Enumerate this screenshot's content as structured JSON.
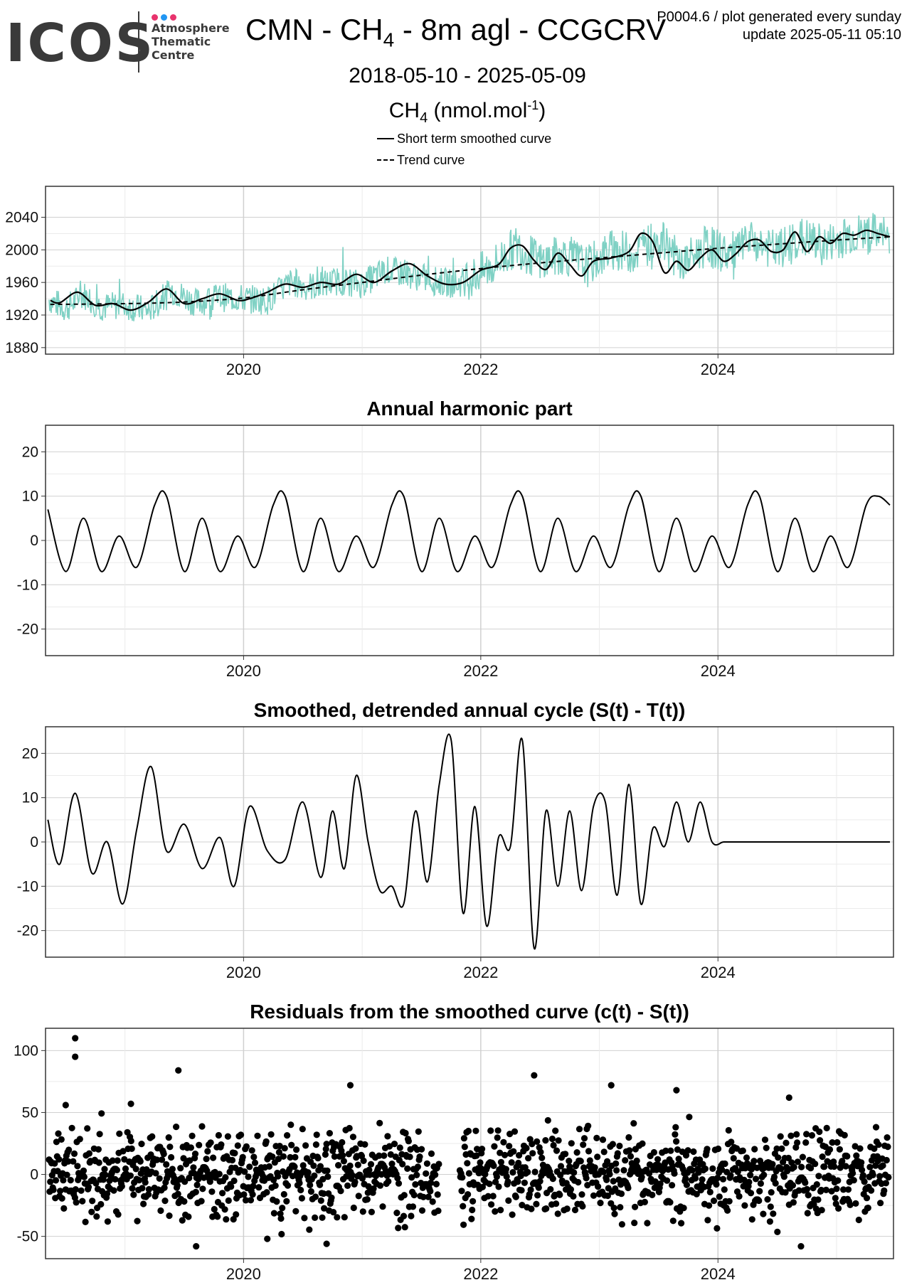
{
  "header": {
    "logo_text": "ICOS",
    "logo_sub": [
      "Atmosphere",
      "Thematic",
      "Centre"
    ],
    "logo_dot_colors": [
      "#e8336d",
      "#2196f3",
      "#e8336d"
    ],
    "title": "CMN - CH4 - 8m agl - CCGCRV",
    "meta_line1": "P0004.6 / plot generated every sunday",
    "meta_line2": "update  2025-05-11 05:10",
    "date_range": "2018-05-10 - 2025-05-09",
    "unit": "CH4 (nmol.mol-1)"
  },
  "legend": {
    "items": [
      {
        "label": "Short term smoothed curve",
        "style": "solid"
      },
      {
        "label": "Trend curve",
        "style": "dashed"
      }
    ]
  },
  "colors": {
    "raw_series": "#7fd1c4",
    "line": "#000000",
    "grid_major": "#d0d0d0",
    "grid_minor": "#ebebeb",
    "frame": "#333333",
    "logo_text": "#3a3a3a"
  },
  "chart_data": [
    {
      "type": "line",
      "title": "",
      "xlim": [
        2018.33,
        2025.48
      ],
      "ylim": [
        1872,
        2078
      ],
      "x_ticks": [
        2020,
        2022,
        2024
      ],
      "y_ticks": [
        1880,
        1920,
        1960,
        2000,
        2040
      ],
      "series": [
        {
          "name": "",
          "kind": "raw",
          "note_estimated": true,
          "x": [
            2018.35,
            2018.5,
            2018.65,
            2018.8,
            2019.0,
            2019.2,
            2019.4,
            2019.6,
            2019.8,
            2020.0,
            2020.2,
            2020.4,
            2020.6,
            2020.8,
            2021.0,
            2021.2,
            2021.4,
            2021.6,
            2021.8,
            2021.95,
            2022.1,
            2022.3,
            2022.5,
            2022.7,
            2022.9,
            2023.1,
            2023.3,
            2023.5,
            2023.7,
            2023.9,
            2024.1,
            2024.3,
            2024.5,
            2024.7,
            2024.9,
            2025.1,
            2025.3,
            2025.45
          ],
          "y": [
            1940,
            1928,
            1945,
            1930,
            1932,
            1925,
            1950,
            1935,
            1942,
            1940,
            1938,
            1960,
            1955,
            1962,
            1958,
            1975,
            1970,
            1962,
            1958,
            1968,
            1980,
            2005,
            1985,
            1995,
            1980,
            2000,
            1996,
            2015,
            1982,
            2005,
            1995,
            2010,
            1998,
            2015,
            2005,
            2018,
            2020,
            2015
          ]
        },
        {
          "name": "Short term smoothed curve",
          "kind": "smooth",
          "x": [
            2018.37,
            2018.45,
            2018.6,
            2018.75,
            2018.9,
            2019.05,
            2019.2,
            2019.35,
            2019.5,
            2019.65,
            2019.8,
            2019.95,
            2020.05,
            2020.2,
            2020.35,
            2020.5,
            2020.65,
            2020.8,
            2020.95,
            2021.1,
            2021.25,
            2021.4,
            2021.55,
            2021.7,
            2021.85,
            2022.0,
            2022.15,
            2022.25,
            2022.35,
            2022.45,
            2022.55,
            2022.65,
            2022.75,
            2022.85,
            2022.95,
            2023.1,
            2023.25,
            2023.35,
            2023.45,
            2023.55,
            2023.65,
            2023.75,
            2023.85,
            2023.95,
            2024.05,
            2024.15,
            2024.25,
            2024.35,
            2024.45,
            2024.55,
            2024.65,
            2024.75,
            2024.85,
            2024.95,
            2025.05,
            2025.15,
            2025.25,
            2025.35,
            2025.45
          ],
          "y": [
            1938,
            1935,
            1948,
            1932,
            1934,
            1926,
            1936,
            1952,
            1934,
            1940,
            1946,
            1938,
            1940,
            1948,
            1958,
            1954,
            1960,
            1958,
            1970,
            1960,
            1974,
            1983,
            1968,
            1958,
            1960,
            1975,
            1982,
            2002,
            2005,
            1987,
            1976,
            1996,
            1982,
            1968,
            1986,
            1990,
            1998,
            2020,
            2010,
            1972,
            1986,
            1975,
            1990,
            2000,
            1986,
            1995,
            2010,
            2012,
            1998,
            2000,
            2022,
            1998,
            2016,
            2008,
            2020,
            2018,
            2024,
            2020,
            2016
          ]
        },
        {
          "name": "Trend curve",
          "kind": "trend",
          "x": [
            2018.37,
            2019.0,
            2019.5,
            2020.0,
            2020.5,
            2021.0,
            2021.5,
            2022.0,
            2022.5,
            2023.0,
            2023.5,
            2024.0,
            2024.5,
            2025.0,
            2025.45
          ],
          "y": [
            1933,
            1934,
            1936,
            1941,
            1951,
            1960,
            1969,
            1977,
            1984,
            1990,
            1996,
            2002,
            2007,
            2012,
            2016
          ]
        }
      ]
    },
    {
      "type": "line",
      "title": "Annual harmonic part",
      "xlim": [
        2018.33,
        2025.48
      ],
      "ylim": [
        -26,
        26
      ],
      "x_ticks": [
        2020,
        2022,
        2024
      ],
      "y_ticks": [
        -20,
        -10,
        0,
        10,
        20
      ],
      "series": [
        {
          "name": "",
          "x": [
            2018.35,
            2018.5,
            2018.65,
            2018.8,
            2018.95,
            2019.1,
            2019.25,
            2019.35,
            2019.5,
            2019.65,
            2019.8,
            2019.95,
            2020.1,
            2020.25,
            2020.35,
            2020.5,
            2020.65,
            2020.8,
            2020.95,
            2021.1,
            2021.25,
            2021.35,
            2021.5,
            2021.65,
            2021.8,
            2021.95,
            2022.1,
            2022.25,
            2022.35,
            2022.5,
            2022.65,
            2022.8,
            2022.95,
            2023.1,
            2023.25,
            2023.35,
            2023.5,
            2023.65,
            2023.8,
            2023.95,
            2024.1,
            2024.25,
            2024.35,
            2024.5,
            2024.65,
            2024.8,
            2024.95,
            2025.1,
            2025.25,
            2025.35,
            2025.45
          ],
          "y": [
            7,
            -7,
            5,
            -7,
            1,
            -6,
            8,
            10,
            -7,
            5,
            -7,
            1,
            -6,
            8,
            10,
            -7,
            5,
            -7,
            1,
            -6,
            8,
            10,
            -7,
            5,
            -7,
            1,
            -6,
            8,
            10,
            -7,
            5,
            -7,
            1,
            -6,
            8,
            10,
            -7,
            5,
            -7,
            1,
            -6,
            8,
            10,
            -7,
            5,
            -7,
            1,
            -6,
            8,
            10,
            8
          ]
        }
      ]
    },
    {
      "type": "line",
      "title": "Smoothed, detrended annual cycle (S(t) - T(t))",
      "xlim": [
        2018.33,
        2025.48
      ],
      "ylim": [
        -26,
        26
      ],
      "x_ticks": [
        2020,
        2022,
        2024
      ],
      "y_ticks": [
        -20,
        -10,
        0,
        10,
        20
      ],
      "series": [
        {
          "name": "",
          "x": [
            2018.35,
            2018.45,
            2018.58,
            2018.72,
            2018.85,
            2018.98,
            2019.1,
            2019.22,
            2019.35,
            2019.5,
            2019.65,
            2019.8,
            2019.92,
            2020.05,
            2020.2,
            2020.35,
            2020.5,
            2020.65,
            2020.75,
            2020.85,
            2020.95,
            2021.05,
            2021.15,
            2021.25,
            2021.35,
            2021.45,
            2021.55,
            2021.65,
            2021.75,
            2021.85,
            2021.95,
            2022.05,
            2022.15,
            2022.25,
            2022.35,
            2022.45,
            2022.55,
            2022.65,
            2022.75,
            2022.85,
            2022.95,
            2023.05,
            2023.15,
            2023.25,
            2023.35,
            2023.45,
            2023.55,
            2023.65,
            2023.75,
            2023.85,
            2023.95,
            2024.05,
            2024.15,
            2024.25,
            2024.35,
            2024.45,
            2024.55,
            2024.65,
            2024.75,
            2024.85,
            2024.95,
            2025.05,
            2025.15,
            2025.25,
            2025.35,
            2025.45
          ],
          "y": [
            5,
            -5,
            11,
            -7,
            0,
            -14,
            3,
            17,
            -2,
            4,
            -6,
            1,
            -10,
            8,
            -2,
            -4,
            9,
            -8,
            7,
            -6,
            15,
            0,
            -11,
            -10,
            -14,
            7,
            -9,
            13,
            23,
            -16,
            8,
            -19,
            1,
            -1,
            23,
            -24,
            7,
            -10,
            7,
            -11,
            8,
            9,
            -12,
            13,
            -14,
            3,
            -1,
            9,
            0,
            9,
            0,
            0,
            0,
            0,
            0,
            0,
            0,
            0,
            0,
            0,
            0,
            0,
            0,
            0,
            0,
            0
          ]
        }
      ]
    },
    {
      "type": "scatter",
      "title": "Residuals from the smoothed curve (c(t) - S(t))",
      "xlim": [
        2018.33,
        2025.48
      ],
      "ylim": [
        -68,
        118
      ],
      "x_ticks": [
        2020,
        2022,
        2024
      ],
      "y_ticks": [
        -50,
        0,
        50,
        100
      ],
      "gap": [
        2021.65,
        2021.82
      ],
      "outliers": [
        {
          "x": 2018.58,
          "y": 110
        },
        {
          "x": 2018.58,
          "y": 95
        },
        {
          "x": 2019.45,
          "y": 84
        },
        {
          "x": 2022.45,
          "y": 80
        },
        {
          "x": 2023.1,
          "y": 72
        },
        {
          "x": 2020.9,
          "y": 72
        },
        {
          "x": 2023.65,
          "y": 68
        },
        {
          "x": 2024.6,
          "y": 62
        },
        {
          "x": 2018.5,
          "y": 56
        },
        {
          "x": 2019.05,
          "y": 57
        },
        {
          "x": 2024.7,
          "y": -58
        },
        {
          "x": 2019.6,
          "y": -58
        },
        {
          "x": 2020.7,
          "y": -56
        },
        {
          "x": 2020.2,
          "y": -52
        }
      ]
    }
  ]
}
